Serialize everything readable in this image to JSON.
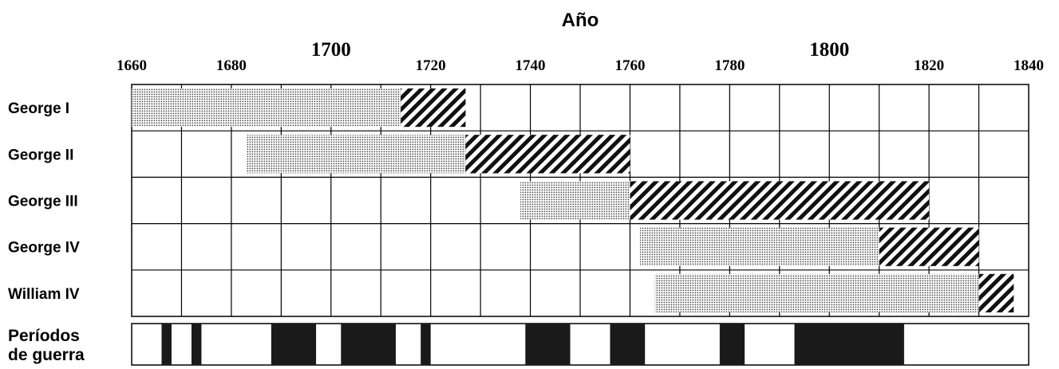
{
  "chart_data": {
    "type": "gantt",
    "title": "Año",
    "x_axis": {
      "range": [
        1660,
        1840
      ],
      "ticks": [
        1660,
        1680,
        1700,
        1720,
        1740,
        1760,
        1780,
        1800,
        1820,
        1840
      ],
      "tick_labels": [
        "1660",
        "1680",
        "1700",
        "1720",
        "1740",
        "1760",
        "1780",
        "1800",
        "1820",
        "1840"
      ],
      "emphasized_ticks": [
        1700,
        1800
      ],
      "grid": true,
      "grid_step": 10,
      "position": "top"
    },
    "rows": [
      {
        "label": "George I",
        "life": [
          1660,
          1727
        ],
        "reign": [
          1714,
          1727
        ]
      },
      {
        "label": "George II",
        "life": [
          1683,
          1760
        ],
        "reign": [
          1727,
          1760
        ]
      },
      {
        "label": "George III",
        "life": [
          1738,
          1820
        ],
        "reign": [
          1760,
          1820
        ]
      },
      {
        "label": "George IV",
        "life": [
          1762,
          1830
        ],
        "reign": [
          1810,
          1830
        ]
      },
      {
        "label": "William IV",
        "life": [
          1765,
          1837
        ],
        "reign": [
          1830,
          1837
        ]
      }
    ],
    "war_row": {
      "label": [
        "Períodos",
        "de guerra"
      ],
      "periods": [
        [
          1666,
          1668
        ],
        [
          1672,
          1674
        ],
        [
          1688,
          1697
        ],
        [
          1702,
          1713
        ],
        [
          1718,
          1720
        ],
        [
          1739,
          1748
        ],
        [
          1756,
          1763
        ],
        [
          1778,
          1783
        ],
        [
          1793,
          1815
        ]
      ]
    },
    "colors": {
      "line": "#000000",
      "war": "#1a1a1a",
      "dots": "#444444",
      "background": "#ffffff"
    }
  }
}
